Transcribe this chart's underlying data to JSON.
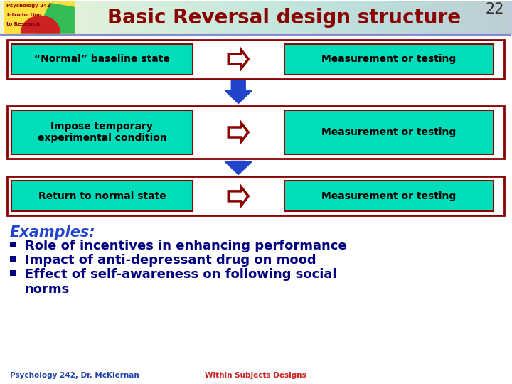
{
  "title": "Basic Reversal design structure",
  "slide_number": "22",
  "background_color": "#ffffff",
  "title_color": "#8B0000",
  "title_fontsize": 20,
  "box_fill_color": "#00DDBB",
  "box_border_color": "#8B0000",
  "rows": [
    {
      "left_text": "“Normal” baseline state",
      "right_text": "Measurement or testing",
      "arrow_color": "#8B0000"
    },
    {
      "left_text": "Impose temporary\nexperimental condition",
      "right_text": "Measurement or testing",
      "arrow_color": "#8B0000"
    },
    {
      "left_text": "Return to normal state",
      "right_text": "Measurement or testing",
      "arrow_color": "#8B0000"
    }
  ],
  "down_arrow_color": "#2244CC",
  "examples_label": "Examples:",
  "examples_color": "#2244CC",
  "examples_fontsize": 15,
  "bullets": [
    "Role of incentives in enhancing performance",
    "Impact of anti-depressant drug on mood",
    "Effect of self-awareness on following social\nnorms"
  ],
  "bullet_color": "#000080",
  "bullet_fontsize": 13,
  "footer_left": "Psychology 242, Dr. McKiernan",
  "footer_right": "Within Subjects Designs",
  "footer_left_color": "#2244AA",
  "footer_right_color": "#CC2222",
  "footer_fontsize": 7.5,
  "logo_text_line1": "Psychology 242",
  "logo_text_line2": "Introduction",
  "logo_text_line3": "to Research",
  "header_gradient_left": "#FFEE88",
  "header_gradient_right": "#DDDDFF"
}
